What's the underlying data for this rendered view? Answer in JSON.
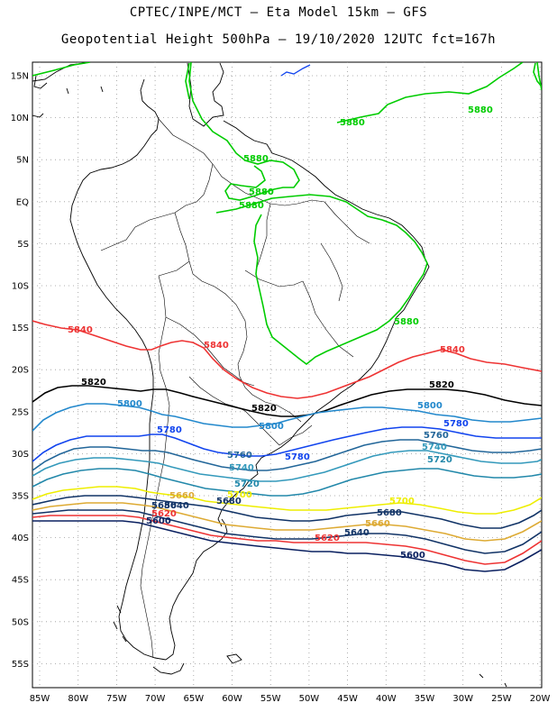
{
  "title_line1": "CPTEC/INPE/MCT –   Eta Model 15km – GFS",
  "title_line2": "Geopotential Height 500hPa – 19/10/2020 12UTC fct=167h",
  "lat_labels": [
    "15N",
    "10N",
    "5N",
    "EQ",
    "5S",
    "10S",
    "15S",
    "20S",
    "25S",
    "30S",
    "35S",
    "40S",
    "45S",
    "50S",
    "55S"
  ],
  "lon_labels": [
    "85W",
    "80W",
    "75W",
    "70W",
    "65W",
    "60W",
    "55W",
    "50W",
    "45W",
    "40W",
    "35W",
    "30W",
    "25W",
    "20W"
  ],
  "colors": {
    "c5880": "#00cc00",
    "c5840": "#ee3333",
    "c5820": "#000000",
    "c5800": "#2288cc",
    "c5780": "#1144ee",
    "c5760": "#226699",
    "c5740": "#3399bb",
    "c5720": "#2288aa",
    "c5700": "#eeee00",
    "c5660": "#ddaa33",
    "c5640": "#113366",
    "c5620": "#ee3333",
    "c5600": "#0a2060",
    "coast": "#000000",
    "blue_line": "#1144ee"
  },
  "contours": {
    "l5880_a": "5880",
    "l5880_b": "5880",
    "l5880_c": "5880",
    "l5880_d": "5880",
    "l5880_e": "5880",
    "l5840_a": "5840",
    "l5840_b": "5840",
    "l5840_c": "5840",
    "l5820_a": "5820",
    "l5820_b": "5820",
    "l5820_c": "5820",
    "l5800_a": "5800",
    "l5800_b": "5800",
    "l5800_c": "5800",
    "l5780_a": "5780",
    "l5780_b": "5780",
    "l5780_c": "5780",
    "l5760_a": "5760",
    "l5760_b": "5760",
    "l5740_a": "5740",
    "l5740_b": "5740",
    "l5720_a": "5720",
    "l5720_b": "5720",
    "l5700_a": "5700",
    "l5700_b": "5700",
    "l5680_a": "5680",
    "l5680_b": "5680",
    "l5680_c": "5680",
    "l5660_a": "5660",
    "l5660_b": "5660",
    "l5640_a": "5640",
    "l5640_b": "5640",
    "l5620_a": "5620",
    "l5620_b": "5620",
    "l5600_a": "5600",
    "l5600_b": "5600"
  }
}
